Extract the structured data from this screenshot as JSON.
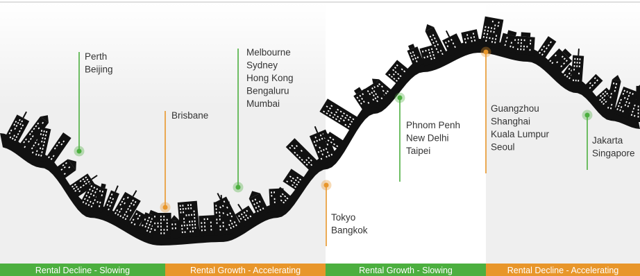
{
  "colors": {
    "green": "#4caf3f",
    "orange": "#e8962a",
    "shade": "#efefef",
    "skyline": "#111111"
  },
  "phases": [
    {
      "label": "Rental Decline - Slowing",
      "color": "green",
      "shaded": true
    },
    {
      "label": "Rental Growth - Accelerating",
      "color": "orange",
      "shaded": true
    },
    {
      "label": "Rental Growth - Slowing",
      "color": "green",
      "shaded": false
    },
    {
      "label": "Rental Decline - Accelerating",
      "color": "orange",
      "shaded": true
    }
  ],
  "markers": [
    {
      "cities": [
        "Perth",
        "Beijing"
      ],
      "color": "green"
    },
    {
      "cities": [
        "Brisbane"
      ],
      "color": "orange"
    },
    {
      "cities": [
        "Melbourne",
        "Sydney",
        "Hong Kong",
        "Bengaluru",
        "Mumbai"
      ],
      "color": "green"
    },
    {
      "cities": [
        "Tokyo",
        "Bangkok"
      ],
      "color": "orange"
    },
    {
      "cities": [
        "Phnom Penh",
        "New Delhi",
        "Taipei"
      ],
      "color": "green"
    },
    {
      "cities": [
        "Guangzhou",
        "Shanghai",
        "Kuala Lumpur",
        "Seoul"
      ],
      "color": "orange"
    },
    {
      "cities": [
        "Jakarta",
        "Singapore"
      ],
      "color": "green"
    }
  ]
}
